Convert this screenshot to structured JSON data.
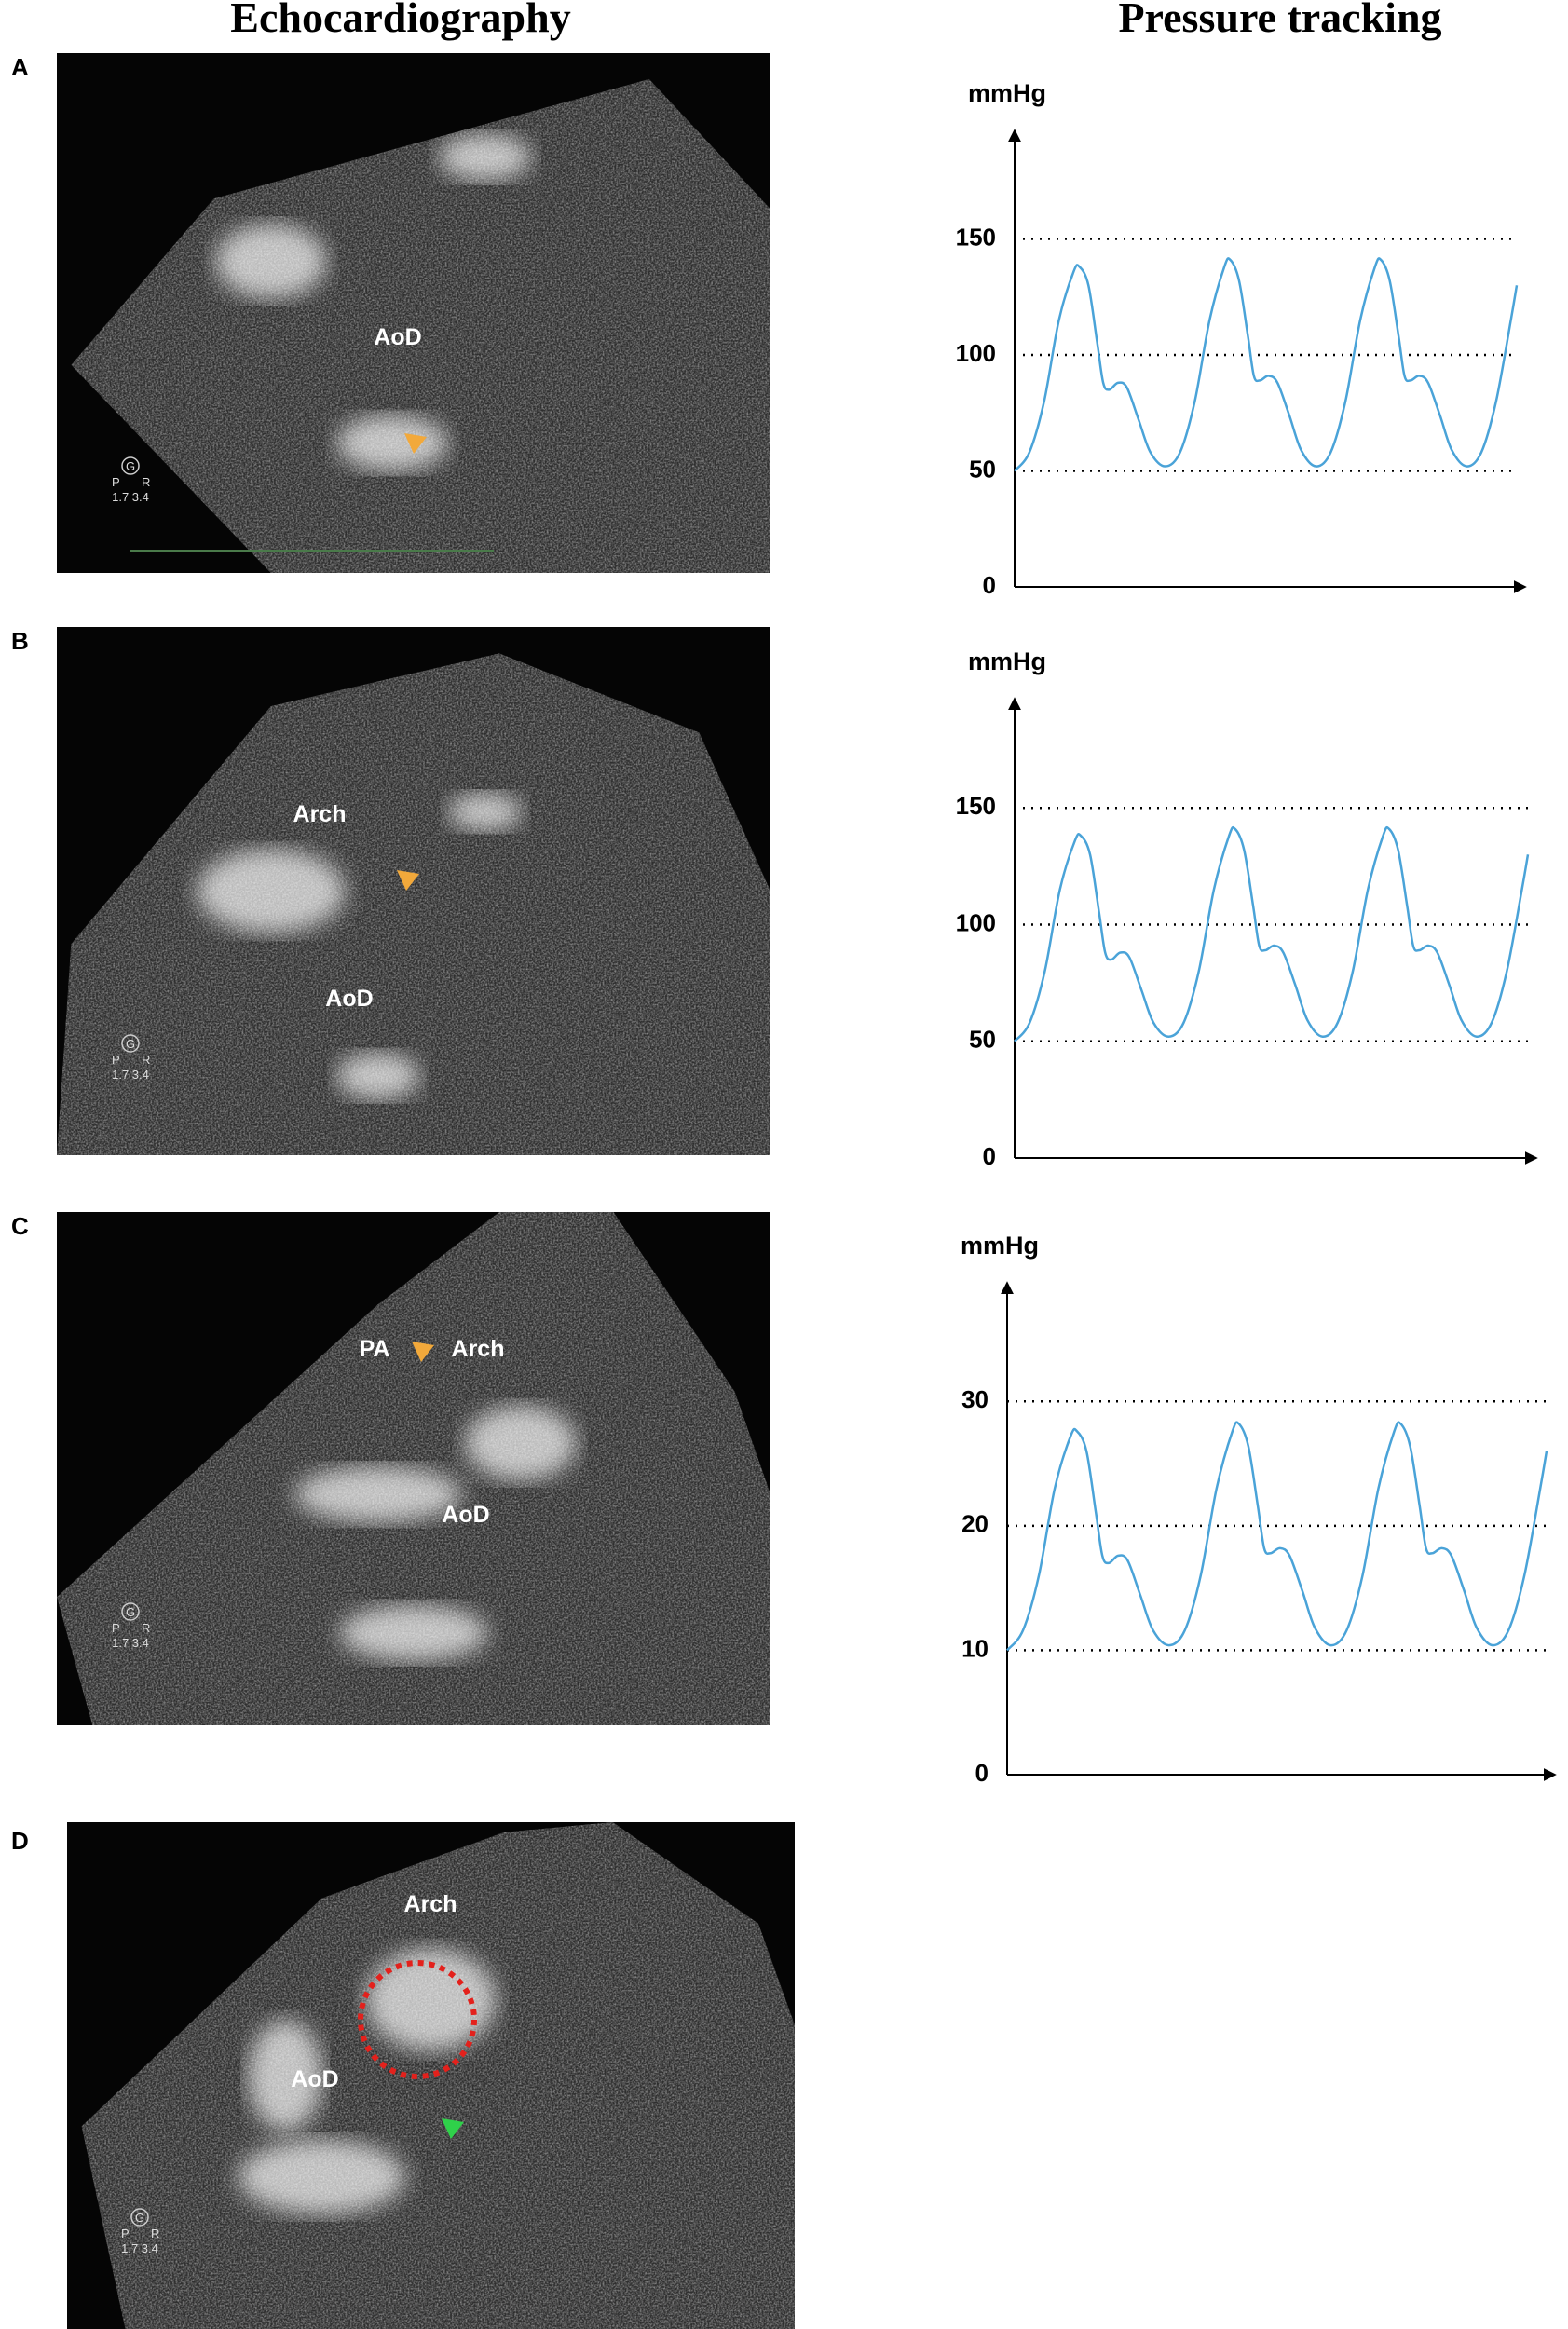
{
  "header": {
    "left": "Echocardiography",
    "right": "Pressure tracking"
  },
  "marker": {
    "badge": "G",
    "left": "P",
    "right": "R",
    "scale": "1.7  3.4"
  },
  "panels": [
    {
      "letter": "A",
      "labels": [
        "AoD"
      ]
    },
    {
      "letter": "B",
      "labels": [
        "Arch",
        "AoD"
      ]
    },
    {
      "letter": "C",
      "labels": [
        "PA",
        "Arch",
        "AoD"
      ]
    },
    {
      "letter": "D",
      "labels": [
        "Arch",
        "AoD"
      ]
    }
  ],
  "chart_data": [
    {
      "type": "line",
      "y_label": "mmHg",
      "color": "#4aa3d8",
      "grid": true,
      "xlim": [
        0,
        340
      ],
      "ylim": [
        0,
        194
      ],
      "yticks": [
        0,
        50,
        100,
        150
      ],
      "x": [
        0,
        10,
        20,
        30,
        40,
        44,
        50,
        56,
        60,
        64,
        70,
        76,
        84,
        92,
        102,
        112,
        122,
        132,
        142,
        146,
        152,
        158,
        162,
        166,
        172,
        178,
        186,
        194,
        204,
        214,
        224,
        234,
        244,
        248,
        254,
        260,
        264,
        268,
        274,
        280,
        288,
        296,
        306,
        316,
        326,
        336,
        340
      ],
      "values": [
        50,
        58,
        80,
        115,
        136,
        138,
        130,
        105,
        88,
        85,
        88,
        86,
        72,
        58,
        52,
        58,
        80,
        115,
        138,
        141,
        132,
        108,
        91,
        89,
        91,
        88,
        74,
        59,
        52,
        58,
        80,
        115,
        138,
        141,
        132,
        108,
        91,
        89,
        91,
        88,
        74,
        59,
        52,
        58,
        80,
        115,
        130
      ]
    },
    {
      "type": "line",
      "y_label": "mmHg",
      "color": "#4aa3d8",
      "grid": true,
      "xlim": [
        0,
        340
      ],
      "ylim": [
        0,
        194
      ],
      "yticks": [
        0,
        50,
        100,
        150
      ],
      "x": [
        0,
        10,
        20,
        30,
        40,
        44,
        50,
        56,
        60,
        64,
        70,
        76,
        84,
        92,
        102,
        112,
        122,
        132,
        142,
        146,
        152,
        158,
        162,
        166,
        172,
        178,
        186,
        194,
        204,
        214,
        224,
        234,
        244,
        248,
        254,
        260,
        264,
        268,
        274,
        280,
        288,
        296,
        306,
        316,
        326,
        336,
        340
      ],
      "values": [
        50,
        58,
        80,
        115,
        136,
        138,
        130,
        105,
        88,
        85,
        88,
        86,
        72,
        58,
        52,
        58,
        80,
        115,
        138,
        141,
        132,
        108,
        91,
        89,
        91,
        88,
        74,
        59,
        52,
        58,
        80,
        115,
        138,
        141,
        132,
        108,
        91,
        89,
        91,
        88,
        74,
        59,
        52,
        58,
        80,
        115,
        130
      ]
    },
    {
      "type": "line",
      "y_label": "mmHg",
      "color": "#4aa3d8",
      "grid": true,
      "xlim": [
        0,
        340
      ],
      "ylim": [
        0,
        39
      ],
      "yticks": [
        0,
        10,
        20,
        30
      ],
      "x": [
        0,
        10,
        20,
        30,
        40,
        44,
        50,
        56,
        60,
        64,
        70,
        76,
        84,
        92,
        102,
        112,
        122,
        132,
        142,
        146,
        152,
        158,
        162,
        166,
        172,
        178,
        186,
        194,
        204,
        214,
        224,
        234,
        244,
        248,
        254,
        260,
        264,
        268,
        274,
        280,
        288,
        296,
        306,
        316,
        326,
        336,
        340
      ],
      "values": [
        10,
        11.6,
        16,
        23,
        27.2,
        27.6,
        26,
        21,
        17.6,
        17,
        17.6,
        17.2,
        14.4,
        11.6,
        10.4,
        11.6,
        16,
        23,
        27.6,
        28.2,
        26.4,
        21.6,
        18.2,
        17.8,
        18.2,
        17.6,
        14.8,
        11.8,
        10.4,
        11.6,
        16,
        23,
        27.6,
        28.2,
        26.4,
        21.6,
        18.2,
        17.8,
        18.2,
        17.6,
        14.8,
        11.8,
        10.4,
        11.6,
        16,
        23,
        26
      ]
    }
  ]
}
